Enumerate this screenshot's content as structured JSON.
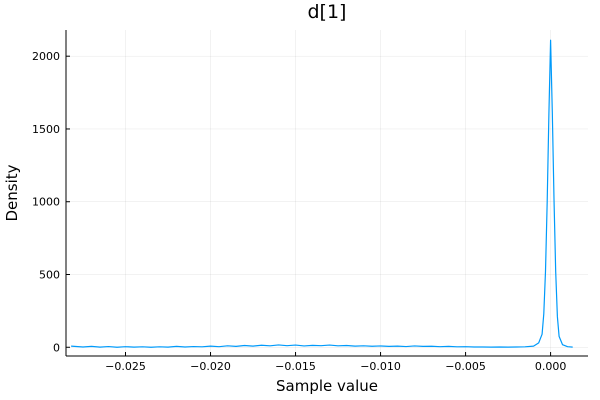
{
  "chart_data": {
    "type": "line",
    "title": "d[1]",
    "xlabel": "Sample value",
    "ylabel": "Density",
    "xlim": [
      -0.0285,
      0.0022
    ],
    "ylim": [
      -60,
      2180
    ],
    "xticks": [
      -0.025,
      -0.02,
      -0.015,
      -0.01,
      -0.005,
      0.0
    ],
    "xtick_labels": [
      "−0.025",
      "−0.020",
      "−0.015",
      "−0.010",
      "−0.005",
      "0.000"
    ],
    "yticks": [
      0,
      500,
      1000,
      1500,
      2000
    ],
    "ytick_labels": [
      "0",
      "500",
      "1000",
      "1500",
      "2000"
    ],
    "grid": true,
    "legend": "none",
    "series": [
      {
        "color": "#009AFA",
        "x": [
          -0.0282,
          -0.0275,
          -0.027,
          -0.0265,
          -0.026,
          -0.0255,
          -0.025,
          -0.0245,
          -0.024,
          -0.0235,
          -0.023,
          -0.0225,
          -0.022,
          -0.0215,
          -0.021,
          -0.0205,
          -0.02,
          -0.0195,
          -0.019,
          -0.0185,
          -0.018,
          -0.0175,
          -0.017,
          -0.0165,
          -0.016,
          -0.0155,
          -0.015,
          -0.0145,
          -0.014,
          -0.0135,
          -0.013,
          -0.0125,
          -0.012,
          -0.0115,
          -0.011,
          -0.0105,
          -0.01,
          -0.0095,
          -0.009,
          -0.0085,
          -0.008,
          -0.0075,
          -0.007,
          -0.0065,
          -0.006,
          -0.0055,
          -0.005,
          -0.0045,
          -0.004,
          -0.0035,
          -0.003,
          -0.0025,
          -0.002,
          -0.0015,
          -0.001,
          -0.0007,
          -0.0005,
          -0.0004,
          -0.0003,
          -0.0002,
          -0.0001,
          0.0,
          0.0001,
          0.0002,
          0.0003,
          0.0004,
          0.0005,
          0.0007,
          0.001,
          0.0013
        ],
        "y": [
          8,
          2,
          6,
          1,
          5,
          0,
          4,
          1,
          3,
          0,
          3,
          1,
          6,
          2,
          5,
          3,
          8,
          4,
          10,
          6,
          12,
          8,
          14,
          10,
          16,
          11,
          15,
          9,
          13,
          11,
          15,
          10,
          12,
          8,
          10,
          7,
          9,
          6,
          8,
          5,
          9,
          6,
          7,
          4,
          6,
          3,
          4,
          2,
          2,
          1,
          2,
          1,
          2,
          3,
          8,
          30,
          90,
          230,
          520,
          1000,
          1600,
          2110,
          1620,
          1020,
          520,
          210,
          75,
          18,
          4,
          1
        ]
      }
    ]
  }
}
